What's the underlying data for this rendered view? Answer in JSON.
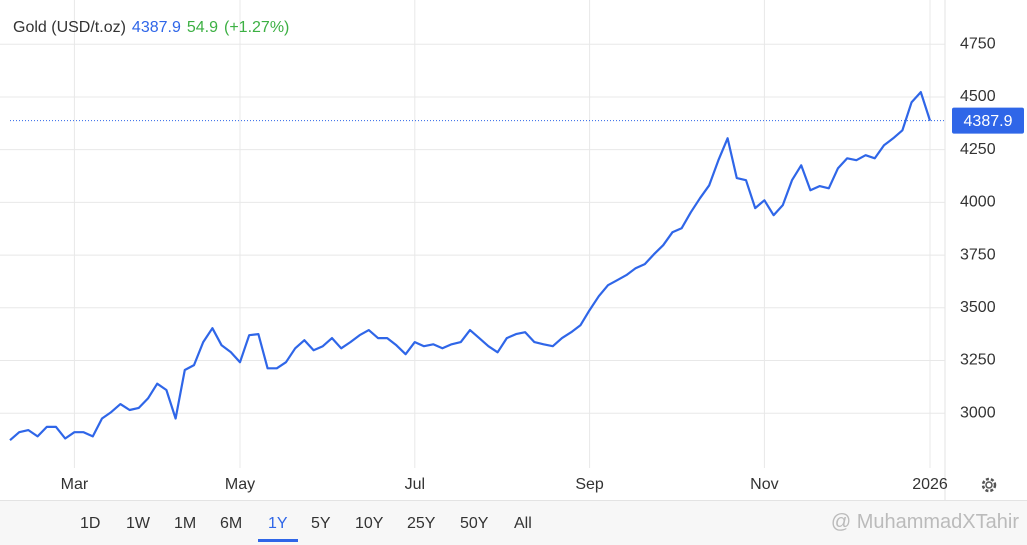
{
  "chart_data": {
    "type": "line",
    "title": "Gold (USD/t.oz)",
    "price": 4387.9,
    "change": 54.9,
    "change_percent": "(+1.27%)",
    "categories": [
      null,
      null,
      null,
      null,
      null,
      null,
      null,
      "Mar",
      null,
      null,
      null,
      null,
      null,
      null,
      null,
      null,
      null,
      null,
      null,
      null,
      null,
      null,
      null,
      null,
      null,
      "May",
      null,
      null,
      null,
      null,
      null,
      null,
      null,
      null,
      null,
      null,
      null,
      null,
      null,
      null,
      null,
      null,
      null,
      null,
      "Jul",
      null,
      null,
      null,
      null,
      null,
      null,
      null,
      null,
      null,
      null,
      null,
      null,
      null,
      null,
      null,
      null,
      null,
      null,
      "Sep",
      null,
      null,
      null,
      null,
      null,
      null,
      null,
      null,
      null,
      null,
      null,
      null,
      null,
      null,
      null,
      null,
      null,
      null,
      "Nov",
      null,
      null,
      null,
      null,
      null,
      null,
      null,
      null,
      null,
      null,
      null,
      null,
      null,
      null,
      null,
      null,
      null,
      "2026"
    ],
    "values": [
      2872,
      2910,
      2920,
      2890,
      2935,
      2935,
      2880,
      2910,
      2910,
      2890,
      2975,
      3005,
      3043,
      3015,
      3025,
      3070,
      3140,
      3110,
      2975,
      3205,
      3228,
      3337,
      3403,
      3322,
      3290,
      3242,
      3370,
      3375,
      3213,
      3213,
      3242,
      3308,
      3346,
      3299,
      3318,
      3356,
      3308,
      3337,
      3370,
      3394,
      3356,
      3356,
      3322,
      3280,
      3337,
      3318,
      3327,
      3308,
      3327,
      3337,
      3394,
      3356,
      3318,
      3289,
      3356,
      3375,
      3384,
      3337,
      3327,
      3318,
      3356,
      3384,
      3417,
      3489,
      3555,
      3607,
      3631,
      3655,
      3688,
      3707,
      3754,
      3797,
      3858,
      3877,
      3953,
      4020,
      4081,
      4200,
      4304,
      4115,
      4105,
      3973,
      4010,
      3939,
      3987,
      4105,
      4176,
      4058,
      4077,
      4067,
      4162,
      4209,
      4200,
      4224,
      4209,
      4271,
      4304,
      4342,
      4475,
      4523,
      4387.9
    ],
    "color": "#2f66e8",
    "ylim": [
      2740,
      4960
    ],
    "yticks": [
      3000,
      3250,
      3500,
      3750,
      4000,
      4250,
      4500,
      4750
    ],
    "grid": true
  },
  "range_buttons": [
    "1D",
    "1W",
    "1M",
    "6M",
    "1Y",
    "5Y",
    "10Y",
    "25Y",
    "50Y",
    "All"
  ],
  "selected_range": 4,
  "watermark": "@ MuhammadXTahir"
}
